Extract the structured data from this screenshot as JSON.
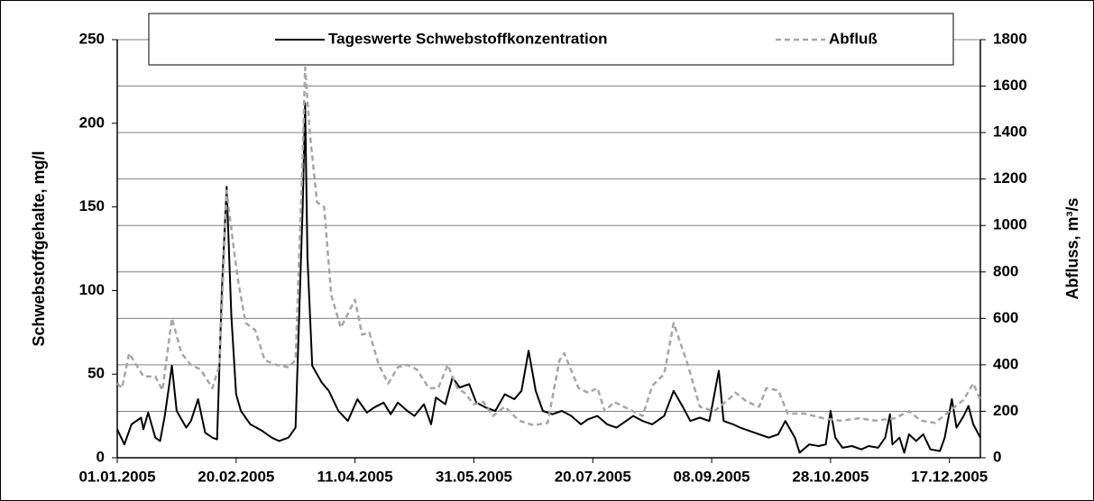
{
  "chart_data": {
    "type": "line",
    "ylabel": "Schwebstoffgehalte, mg/l",
    "y2label": "Abfluss, m³/s",
    "xlim": [
      "01.01.2005",
      "30.12.2005"
    ],
    "xticks": [
      "01.01.2005",
      "20.02.2005",
      "11.04.2005",
      "31.05.2005",
      "20.07.2005",
      "08.09.2005",
      "28.10.2005",
      "17.12.2005"
    ],
    "ylim": [
      0,
      250
    ],
    "yticks": [
      0,
      50,
      100,
      150,
      200,
      250
    ],
    "y2lim": [
      0,
      1800
    ],
    "y2ticks": [
      0,
      200,
      400,
      600,
      800,
      1000,
      1200,
      1400,
      1600,
      1800
    ],
    "grid": "y2",
    "legend": "top",
    "series": [
      {
        "name": "Tageswerte Schwebstoffkonzentration",
        "color": "#000000",
        "dashed": false,
        "axis": "y",
        "x": [
          "01.01.2005",
          "04.01.2005",
          "07.01.2005",
          "11.01.2005",
          "12.01.2005",
          "14.01.2005",
          "17.01.2005",
          "19.01.2005",
          "21.01.2005",
          "24.01.2005",
          "26.01.2005",
          "30.01.2005",
          "01.02.2005",
          "04.02.2005",
          "07.02.2005",
          "10.02.2005",
          "12.02.2005",
          "14.02.2005",
          "16.02.2005",
          "18.02.2005",
          "20.02.2005",
          "22.02.2005",
          "26.02.2005",
          "03.03.2005",
          "07.03.2005",
          "10.03.2005",
          "14.03.2005",
          "17.03.2005",
          "20.03.2005",
          "21.03.2005",
          "22.03.2005",
          "24.03.2005",
          "28.03.2005",
          "31.03.2005",
          "04.04.2005",
          "08.04.2005",
          "12.04.2005",
          "16.04.2005",
          "19.04.2005",
          "23.04.2005",
          "26.04.2005",
          "29.04.2005",
          "03.05.2005",
          "06.05.2005",
          "10.05.2005",
          "13.05.2005",
          "15.05.2005",
          "19.05.2005",
          "22.05.2005",
          "25.05.2005",
          "29.05.2005",
          "01.06.2005",
          "05.06.2005",
          "09.06.2005",
          "13.06.2005",
          "17.06.2005",
          "20.06.2005",
          "23.06.2005",
          "26.06.2005",
          "29.06.2005",
          "03.07.2005",
          "07.07.2005",
          "11.07.2005",
          "15.07.2005",
          "18.07.2005",
          "22.07.2005",
          "26.07.2005",
          "30.07.2005",
          "03.08.2005",
          "06.08.2005",
          "10.08.2005",
          "14.08.2005",
          "19.08.2005",
          "23.08.2005",
          "27.08.2005",
          "30.08.2005",
          "03.09.2005",
          "07.09.2005",
          "11.09.2005",
          "13.09.2005",
          "17.09.2005",
          "20.09.2005",
          "24.09.2005",
          "28.09.2005",
          "02.10.2005",
          "06.10.2005",
          "09.10.2005",
          "13.10.2005",
          "15.10.2005",
          "19.10.2005",
          "23.10.2005",
          "26.10.2005",
          "28.10.2005",
          "30.10.2005",
          "02.11.2005",
          "06.11.2005",
          "10.11.2005",
          "13.11.2005",
          "17.11.2005",
          "20.11.2005",
          "22.11.2005",
          "23.11.2005",
          "26.11.2005",
          "28.11.2005",
          "30.11.2005",
          "03.12.2005",
          "06.12.2005",
          "09.12.2005",
          "13.12.2005",
          "15.12.2005",
          "18.12.2005",
          "20.12.2005",
          "23.12.2005",
          "25.12.2005",
          "27.12.2005",
          "30.12.2005"
        ],
        "values": [
          17,
          8,
          20,
          24,
          17,
          27,
          12,
          10,
          25,
          55,
          28,
          18,
          22,
          35,
          15,
          12,
          11,
          100,
          162,
          85,
          38,
          28,
          20,
          16,
          12,
          10,
          12,
          18,
          150,
          212,
          120,
          55,
          45,
          40,
          28,
          22,
          35,
          27,
          30,
          33,
          26,
          33,
          28,
          25,
          32,
          20,
          36,
          32,
          48,
          42,
          44,
          33,
          30,
          28,
          38,
          35,
          40,
          64,
          40,
          28,
          26,
          28,
          25,
          20,
          23,
          25,
          20,
          18,
          22,
          25,
          22,
          20,
          25,
          40,
          30,
          22,
          24,
          22,
          52,
          22,
          20,
          18,
          16,
          14,
          12,
          14,
          22,
          12,
          3,
          8,
          7,
          8,
          28,
          12,
          6,
          7,
          5,
          7,
          6,
          12,
          26,
          8,
          12,
          3,
          14,
          10,
          14,
          5,
          4,
          12,
          35,
          18,
          25,
          31,
          20,
          12
        ]
      },
      {
        "name": "Abfluß",
        "color": "#a6a6a6",
        "dashed": true,
        "axis": "y2",
        "x": [
          "01.01.2005",
          "03.01.2005",
          "06.01.2005",
          "09.01.2005",
          "12.01.2005",
          "17.01.2005",
          "20.01.2005",
          "24.01.2005",
          "28.01.2005",
          "01.02.2005",
          "05.02.2005",
          "10.02.2005",
          "13.02.2005",
          "16.02.2005",
          "19.02.2005",
          "21.02.2005",
          "24.02.2005",
          "28.02.2005",
          "04.03.2005",
          "09.03.2005",
          "14.03.2005",
          "17.03.2005",
          "20.03.2005",
          "21.03.2005",
          "23.03.2005",
          "26.03.2005",
          "29.03.2005",
          "01.04.2005",
          "05.04.2005",
          "11.04.2005",
          "14.04.2005",
          "17.04.2005",
          "21.04.2005",
          "25.04.2005",
          "29.04.2005",
          "03.05.2005",
          "07.05.2005",
          "12.05.2005",
          "16.05.2005",
          "20.05.2005",
          "24.05.2005",
          "27.05.2005",
          "31.05.2005",
          "04.06.2005",
          "08.06.2005",
          "13.06.2005",
          "19.06.2005",
          "25.06.2005",
          "01.07.2005",
          "06.07.2005",
          "08.07.2005",
          "14.07.2005",
          "18.07.2005",
          "22.07.2005",
          "25.07.2005",
          "29.07.2005",
          "04.08.2005",
          "10.08.2005",
          "14.08.2005",
          "19.08.2005",
          "23.08.2005",
          "29.08.2005",
          "03.09.2005",
          "09.09.2005",
          "15.09.2005",
          "18.09.2005",
          "23.09.2005",
          "28.09.2005",
          "01.10.2005",
          "06.10.2005",
          "10.10.2005",
          "17.10.2005",
          "25.10.2005",
          "01.11.2005",
          "09.11.2005",
          "16.11.2005",
          "24.11.2005",
          "30.11.2005",
          "05.12.2005",
          "11.12.2005",
          "17.12.2005",
          "23.12.2005",
          "27.12.2005",
          "30.12.2005"
        ],
        "values": [
          320,
          300,
          450,
          400,
          350,
          350,
          290,
          600,
          450,
          400,
          380,
          300,
          400,
          1150,
          900,
          750,
          580,
          550,
          420,
          400,
          390,
          420,
          1300,
          1680,
          1400,
          1100,
          1080,
          700,
          560,
          680,
          530,
          540,
          400,
          320,
          390,
          400,
          380,
          300,
          300,
          400,
          300,
          280,
          230,
          240,
          180,
          220,
          160,
          140,
          150,
          420,
          450,
          300,
          280,
          300,
          200,
          240,
          210,
          180,
          310,
          360,
          580,
          400,
          220,
          200,
          250,
          280,
          240,
          220,
          300,
          290,
          190,
          190,
          170,
          160,
          170,
          160,
          170,
          200,
          160,
          150,
          200,
          250,
          320,
          250
        ]
      }
    ]
  }
}
